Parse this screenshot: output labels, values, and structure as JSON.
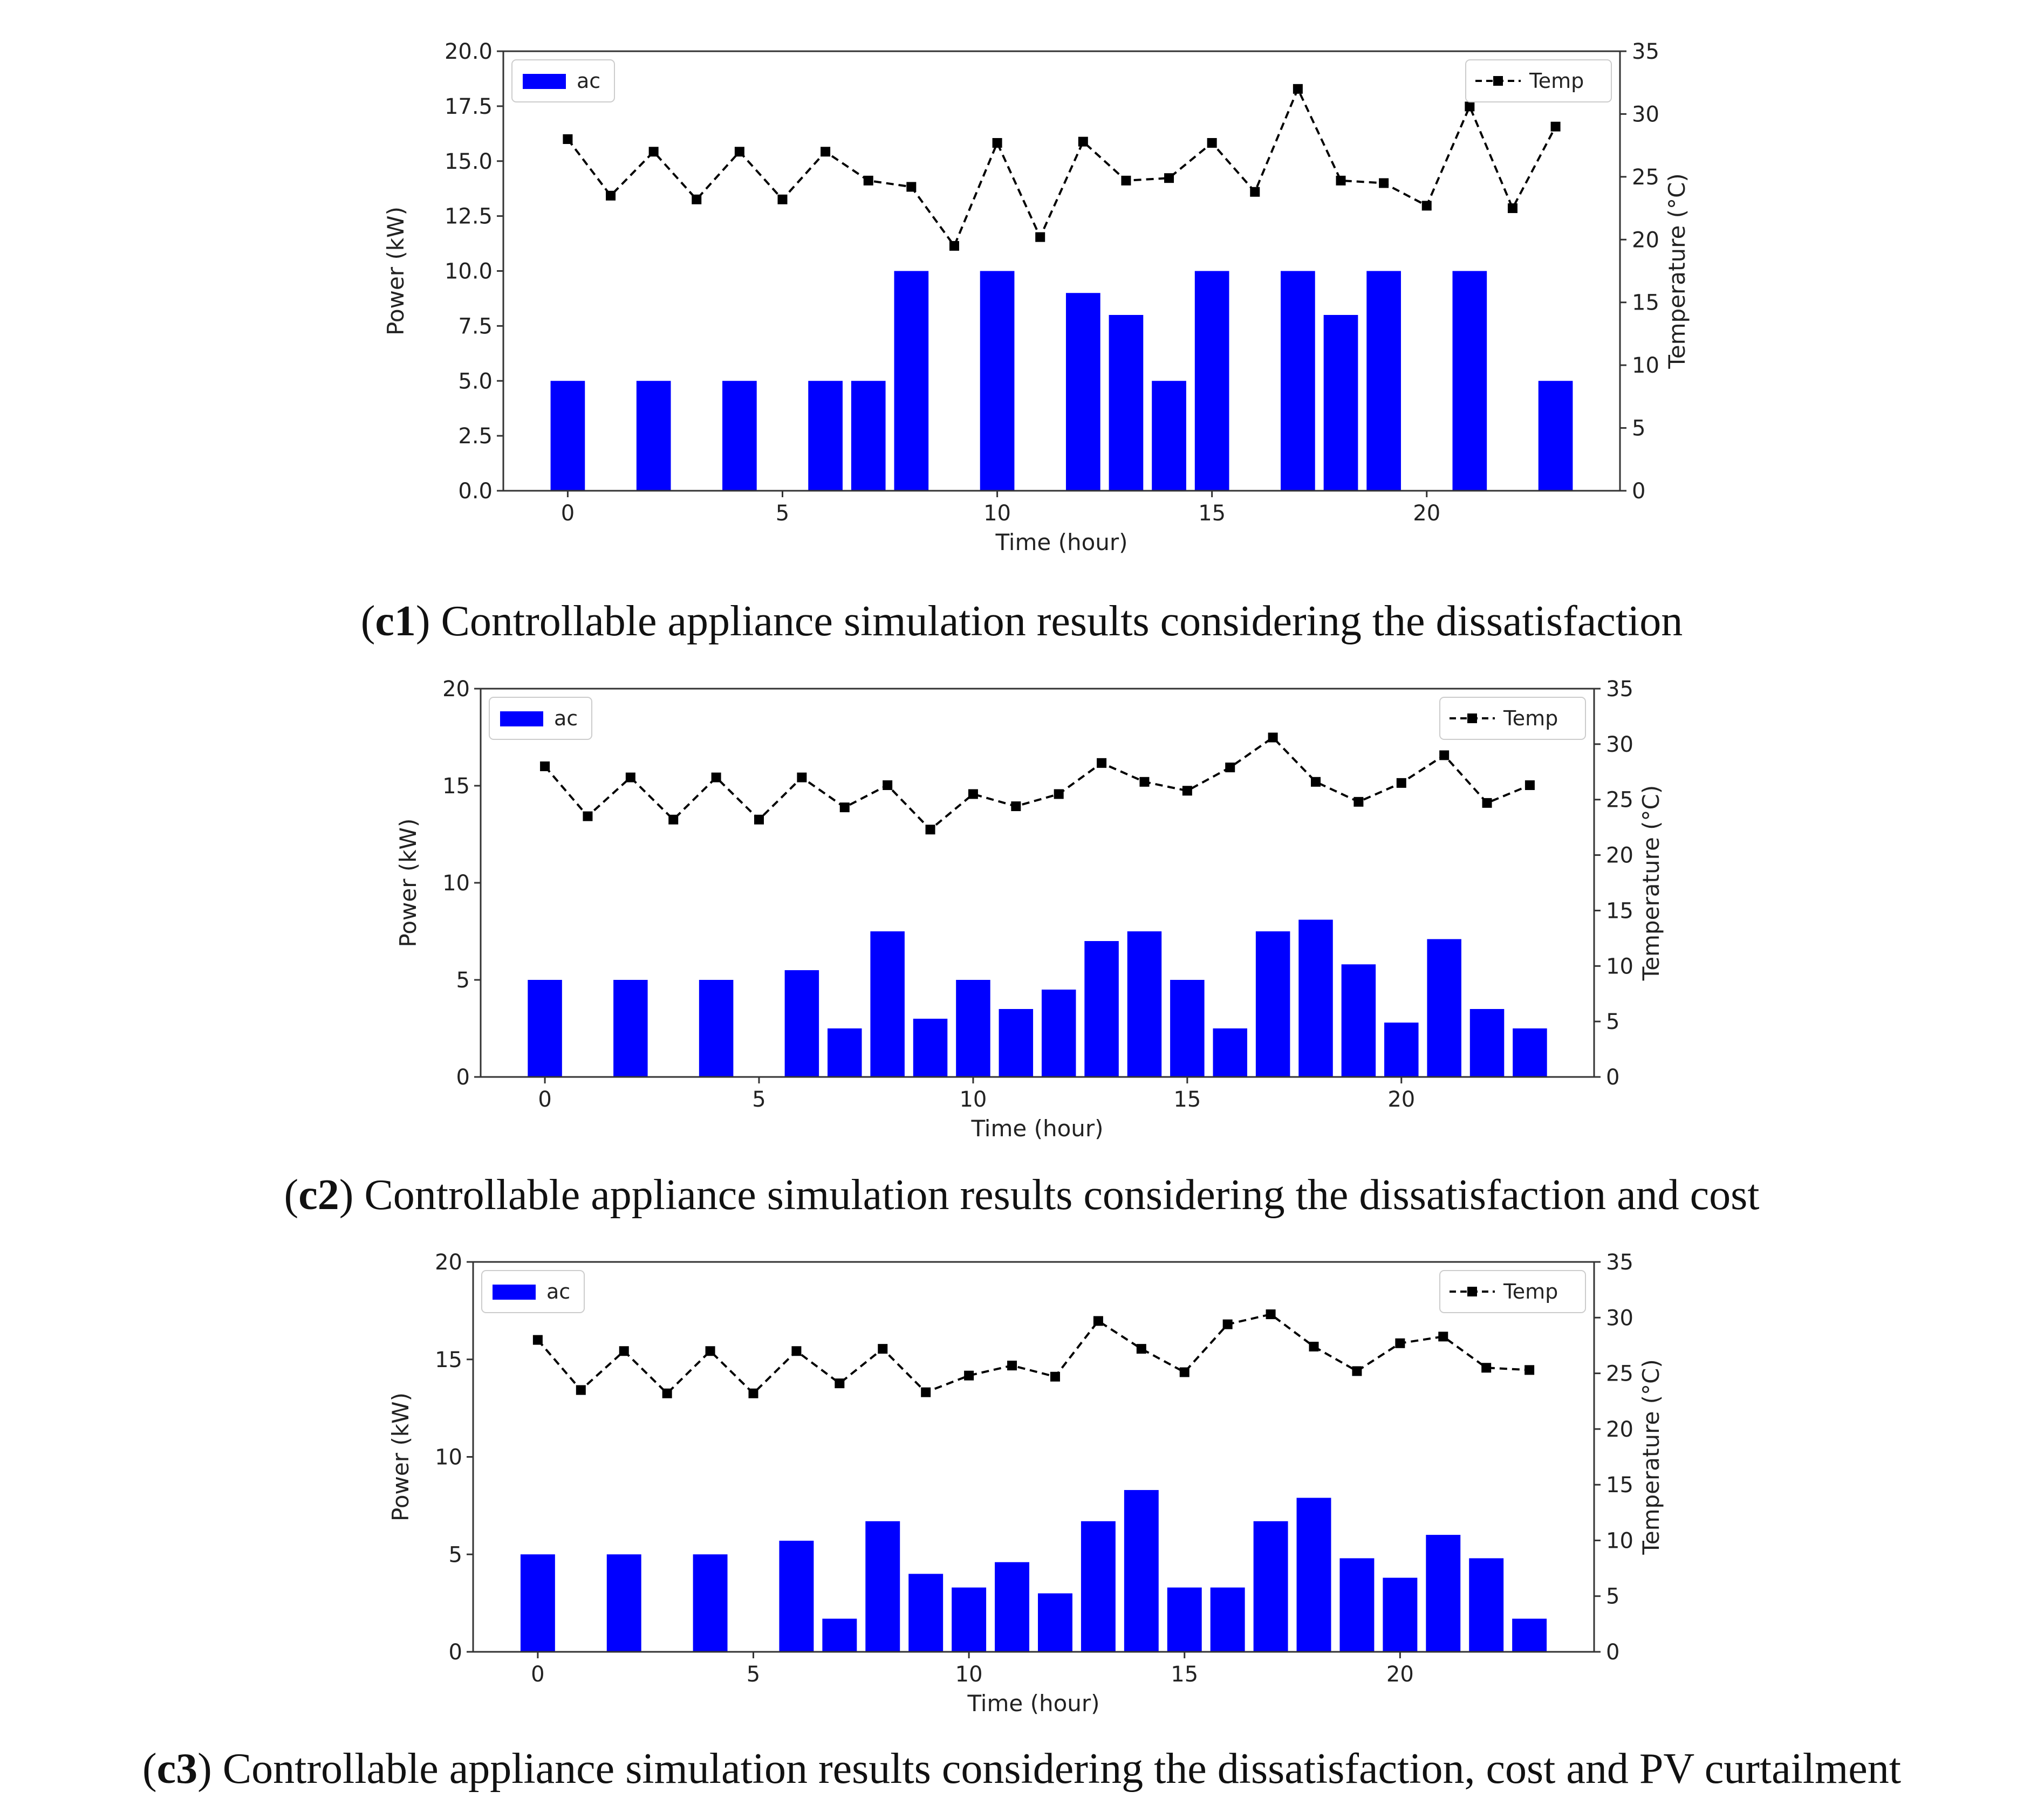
{
  "colors": {
    "bar": "#0000ff",
    "temp": "#000000",
    "axis": "#333333"
  },
  "chart_data": [
    {
      "id": "c1",
      "type": "bar",
      "title": "",
      "caption": {
        "label": "c1",
        "text": ") Controllable appliance simulation results considering the dissatisfaction"
      },
      "xlabel": "Time (hour)",
      "ylabel": "Power (kW)",
      "ylabel2": "Temperature (°C)",
      "xlim": [
        -1.5,
        24.5
      ],
      "ylim": [
        0,
        20
      ],
      "ylim2": [
        0,
        35
      ],
      "xticks": [
        0,
        5,
        10,
        15,
        20
      ],
      "yticks": [
        0,
        2.5,
        5,
        7.5,
        10,
        12.5,
        15,
        17.5,
        20
      ],
      "ytick_labels": [
        "0.0",
        "2.5",
        "5.0",
        "7.5",
        "10.0",
        "12.5",
        "15.0",
        "17.5",
        "20.0"
      ],
      "yticks2": [
        0,
        5,
        10,
        15,
        20,
        25,
        30,
        35
      ],
      "legend": {
        "bar": "ac",
        "line": "Temp"
      },
      "series": [
        {
          "name": "ac",
          "kind": "bar",
          "x": [
            0,
            1,
            2,
            3,
            4,
            5,
            6,
            7,
            8,
            9,
            10,
            11,
            12,
            13,
            14,
            15,
            16,
            17,
            18,
            19,
            20,
            21,
            22,
            23
          ],
          "values": [
            5,
            0,
            5,
            0,
            5,
            0,
            5,
            5,
            10,
            0,
            10,
            0,
            9,
            8,
            5,
            10,
            0,
            10,
            8,
            10,
            0,
            10,
            0,
            5
          ]
        },
        {
          "name": "Temp",
          "kind": "line",
          "axis": "right",
          "x": [
            0,
            1,
            2,
            3,
            4,
            5,
            6,
            7,
            8,
            9,
            10,
            11,
            12,
            13,
            14,
            15,
            16,
            17,
            18,
            19,
            20,
            21,
            22,
            23
          ],
          "values": [
            28,
            23.5,
            27,
            23.2,
            27,
            23.2,
            27,
            24.7,
            24.2,
            19.5,
            27.7,
            20.2,
            27.8,
            24.7,
            24.9,
            27.7,
            23.8,
            32,
            24.7,
            24.5,
            22.7,
            30.6,
            22.5,
            29
          ]
        }
      ]
    },
    {
      "id": "c2",
      "type": "bar",
      "title": "",
      "caption": {
        "label": "c2",
        "text": ") Controllable appliance simulation results considering the dissatisfaction and cost"
      },
      "xlabel": "Time (hour)",
      "ylabel": "Power (kW)",
      "ylabel2": "Temperature (°C)",
      "xlim": [
        -1.5,
        24.5
      ],
      "ylim": [
        0,
        20
      ],
      "ylim2": [
        0,
        35
      ],
      "xticks": [
        0,
        5,
        10,
        15,
        20
      ],
      "yticks": [
        0,
        5,
        10,
        15,
        20
      ],
      "ytick_labels": [
        "0",
        "5",
        "10",
        "15",
        "20"
      ],
      "yticks2": [
        0,
        5,
        10,
        15,
        20,
        25,
        30,
        35
      ],
      "legend": {
        "bar": "ac",
        "line": "Temp"
      },
      "series": [
        {
          "name": "ac",
          "kind": "bar",
          "x": [
            0,
            1,
            2,
            3,
            4,
            5,
            6,
            7,
            8,
            9,
            10,
            11,
            12,
            13,
            14,
            15,
            16,
            17,
            18,
            19,
            20,
            21,
            22,
            23
          ],
          "values": [
            5,
            0,
            5,
            0,
            5,
            0,
            5.5,
            2.5,
            7.5,
            3,
            5,
            3.5,
            4.5,
            7,
            7.5,
            5,
            2.5,
            7.5,
            8.1,
            5.8,
            2.8,
            7.1,
            3.5,
            2.5
          ]
        },
        {
          "name": "Temp",
          "kind": "line",
          "axis": "right",
          "x": [
            0,
            1,
            2,
            3,
            4,
            5,
            6,
            7,
            8,
            9,
            10,
            11,
            12,
            13,
            14,
            15,
            16,
            17,
            18,
            19,
            20,
            21,
            22,
            23
          ],
          "values": [
            28,
            23.5,
            27,
            23.2,
            27,
            23.2,
            27,
            24.3,
            26.3,
            22.3,
            25.5,
            24.4,
            25.5,
            28.3,
            26.6,
            25.8,
            27.9,
            30.6,
            26.6,
            24.8,
            26.5,
            29,
            24.7,
            26.3
          ]
        }
      ]
    },
    {
      "id": "c3",
      "type": "bar",
      "title": "",
      "caption": {
        "label": "c3",
        "text": ") Controllable appliance simulation results considering the dissatisfaction, cost and PV curtailment"
      },
      "xlabel": "Time (hour)",
      "ylabel": "Power (kW)",
      "ylabel2": "Temperature (°C)",
      "xlim": [
        -1.5,
        24.5
      ],
      "ylim": [
        0,
        20
      ],
      "ylim2": [
        0,
        35
      ],
      "xticks": [
        0,
        5,
        10,
        15,
        20
      ],
      "yticks": [
        0,
        5,
        10,
        15,
        20
      ],
      "ytick_labels": [
        "0",
        "5",
        "10",
        "15",
        "20"
      ],
      "yticks2": [
        0,
        5,
        10,
        15,
        20,
        25,
        30,
        35
      ],
      "legend": {
        "bar": "ac",
        "line": "Temp"
      },
      "series": [
        {
          "name": "ac",
          "kind": "bar",
          "x": [
            0,
            1,
            2,
            3,
            4,
            5,
            6,
            7,
            8,
            9,
            10,
            11,
            12,
            13,
            14,
            15,
            16,
            17,
            18,
            19,
            20,
            21,
            22,
            23
          ],
          "values": [
            5,
            0,
            5,
            0,
            5,
            0,
            5.7,
            1.7,
            6.7,
            4,
            3.3,
            4.6,
            3,
            6.7,
            8.3,
            3.3,
            3.3,
            6.7,
            7.9,
            4.8,
            3.8,
            6,
            4.8,
            1.7
          ]
        },
        {
          "name": "Temp",
          "kind": "line",
          "axis": "right",
          "x": [
            0,
            1,
            2,
            3,
            4,
            5,
            6,
            7,
            8,
            9,
            10,
            11,
            12,
            13,
            14,
            15,
            16,
            17,
            18,
            19,
            20,
            21,
            22,
            23
          ],
          "values": [
            28,
            23.5,
            27,
            23.2,
            27,
            23.2,
            27,
            24.1,
            27.2,
            23.3,
            24.8,
            25.7,
            24.7,
            29.7,
            27.2,
            25.1,
            29.4,
            30.3,
            27.4,
            25.2,
            27.7,
            28.3,
            25.5,
            25.3
          ]
        }
      ]
    }
  ]
}
